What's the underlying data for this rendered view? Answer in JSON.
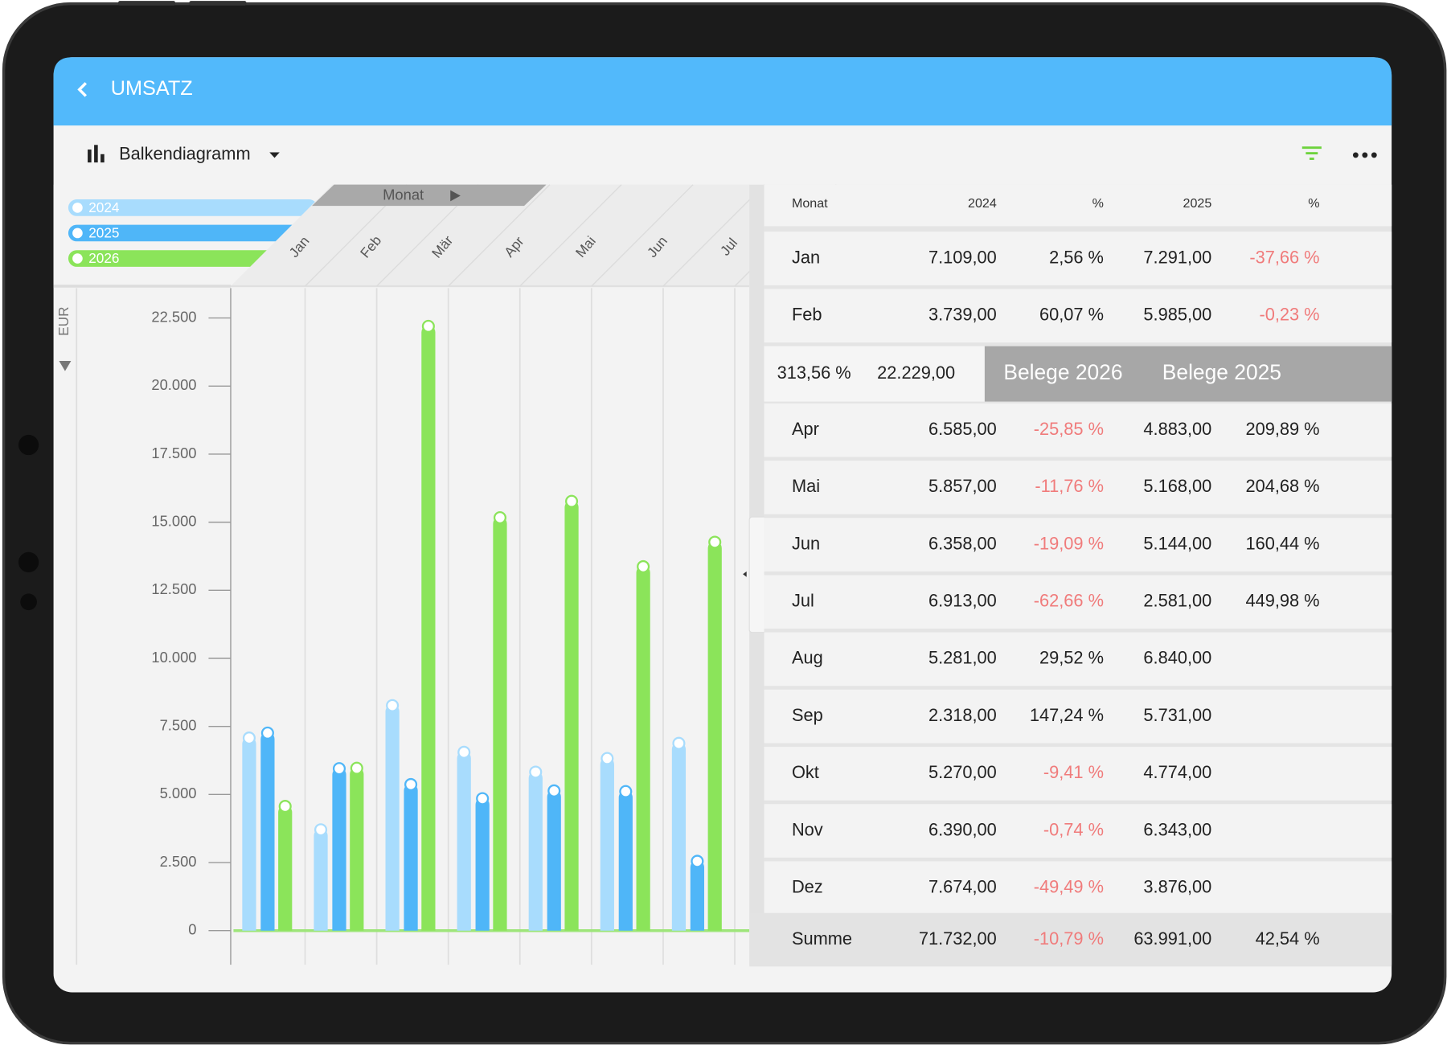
{
  "header": {
    "title": "UMSATZ"
  },
  "toolbar": {
    "view": "Balkendiagramm"
  },
  "chart_data": {
    "type": "bar",
    "x_axis_label": "Monat",
    "y_axis_label": "EUR",
    "categories": [
      "Jan",
      "Feb",
      "Mär",
      "Apr",
      "Mai",
      "Jun",
      "Jul"
    ],
    "series": [
      {
        "name": "2024",
        "color": "#a8dcfd",
        "values": [
          7109,
          3739,
          8300,
          6585,
          5857,
          6358,
          6913
        ]
      },
      {
        "name": "2025",
        "color": "#4fb6f8",
        "values": [
          7291,
          5985,
          5400,
          4883,
          5168,
          5144,
          2581
        ]
      },
      {
        "name": "2026",
        "color": "#8be45a",
        "values": [
          4600,
          6000,
          22229,
          15200,
          15800,
          13400,
          14300
        ]
      }
    ],
    "ylim": [
      -1250,
      23600
    ],
    "yticks": [
      0,
      {
        "value": 2500,
        "label": "2.500"
      },
      {
        "value": 5000,
        "label": "5.000"
      },
      {
        "value": 7500,
        "label": "7.500"
      },
      {
        "value": 10000,
        "label": "10.000"
      },
      {
        "value": 12500,
        "label": "12.500"
      },
      {
        "value": 15000,
        "label": "15.000"
      },
      {
        "value": 17500,
        "label": "17.500"
      },
      {
        "value": 20000,
        "label": "20.000"
      },
      {
        "value": 22500,
        "label": "22.500"
      }
    ]
  },
  "table": {
    "columns": [
      "Monat",
      "2024",
      "%",
      "2025",
      "%"
    ],
    "rows": [
      [
        "Jan",
        "7.109,00",
        "2,56 %",
        "7.291,00",
        "-37,66 %"
      ],
      [
        "Feb",
        "3.739,00",
        "60,07 %",
        "5.985,00",
        "-0,23 %"
      ],
      [
        "Apr",
        "6.585,00",
        "-25,85 %",
        "4.883,00",
        "209,89 %"
      ],
      [
        "Mai",
        "5.857,00",
        "-11,76 %",
        "5.168,00",
        "204,68 %"
      ],
      [
        "Jun",
        "6.358,00",
        "-19,09 %",
        "5.144,00",
        "160,44 %"
      ],
      [
        "Jul",
        "6.913,00",
        "-62,66 %",
        "2.581,00",
        "449,98 %"
      ],
      [
        "Aug",
        "5.281,00",
        "29,52 %",
        "6.840,00"
      ],
      [
        "Sep",
        "2.318,00",
        "147,24 %",
        "5.731,00"
      ],
      [
        "Okt",
        "5.270,00",
        "-9,41 %",
        "4.774,00"
      ],
      [
        "Nov",
        "6.390,00",
        "-0,74 %",
        "6.343,00"
      ],
      [
        "Dez",
        "7.674,00",
        "-49,49 %",
        "3.876,00"
      ]
    ],
    "total": [
      "Summe",
      "71.732,00",
      "-10,79 %",
      "63.991,00",
      "42,54 %"
    ]
  },
  "row_overlay": {
    "cells": [
      "313,56 %",
      "22.229,00"
    ],
    "buttons": [
      "Belege 2026",
      "Belege 2025"
    ]
  }
}
